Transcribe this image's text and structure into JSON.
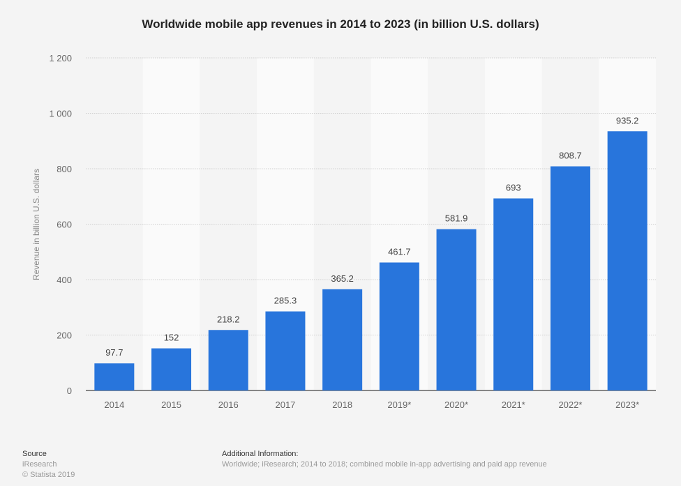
{
  "chart_data": {
    "type": "bar",
    "title": "Worldwide mobile app revenues in 2014 to 2023 (in billion U.S. dollars)",
    "xlabel": "",
    "ylabel": "Revenue in billion U.S. dollars",
    "categories": [
      "2014",
      "2015",
      "2016",
      "2017",
      "2018",
      "2019*",
      "2020*",
      "2021*",
      "2022*",
      "2023*"
    ],
    "values": [
      97.7,
      152,
      218.2,
      285.3,
      365.2,
      461.7,
      581.9,
      693,
      808.7,
      935.2
    ],
    "data_labels": [
      "97.7",
      "152",
      "218.2",
      "285.3",
      "365.2",
      "461.7",
      "581.9",
      "693",
      "808.7",
      "935.2"
    ],
    "ylim": [
      0,
      1200
    ],
    "yticks": [
      0,
      200,
      400,
      600,
      800,
      1000,
      1200
    ],
    "ytick_labels": [
      "0",
      "200",
      "400",
      "600",
      "800",
      "1 000",
      "1 200"
    ],
    "grid": true,
    "bar_color": "#2875dc"
  },
  "footer": {
    "source_heading": "Source",
    "source_name": "iResearch",
    "copyright": "© Statista 2019",
    "info_heading": "Additional Information:",
    "info_text": "Worldwide; iResearch; 2014 to 2018; combined mobile in-app advertising and paid app revenue"
  }
}
